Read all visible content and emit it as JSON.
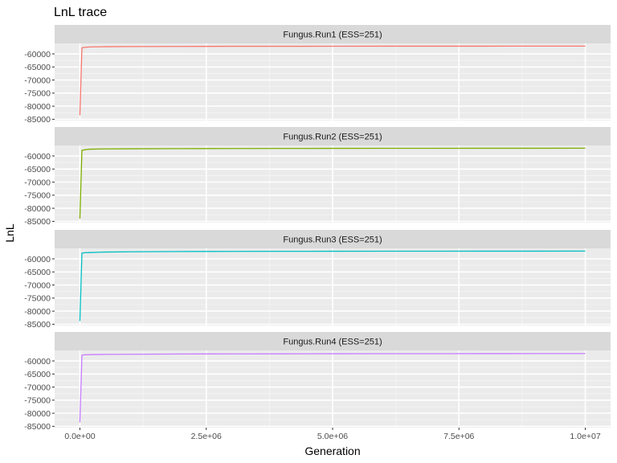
{
  "chart_data": {
    "type": "line",
    "title": "LnL trace",
    "xlabel": "Generation",
    "ylabel": "LnL",
    "xlim": [
      -500000,
      10500000
    ],
    "ylim": [
      -85500,
      -56000
    ],
    "grid": true,
    "x_ticks": [
      0,
      2500000,
      5000000,
      7500000,
      10000000
    ],
    "x_tick_labels": [
      "0.0e+00",
      "2.5e+06",
      "5.0e+06",
      "7.5e+06",
      "1.0e+07"
    ],
    "y_ticks": [
      -60000,
      -65000,
      -70000,
      -75000,
      -80000,
      -85000
    ],
    "y_tick_labels": [
      "-60000",
      "-65000",
      "-70000",
      "-75000",
      "-80000",
      "-85000"
    ],
    "facets": [
      {
        "strip": "Fungus.Run1 (ESS=251)",
        "color": "#F8766D",
        "series": {
          "x": [
            0,
            40000,
            100000,
            200000,
            500000,
            1000000,
            2000000,
            3000000,
            4000000,
            5000000,
            6000000,
            7000000,
            8000000,
            9000000,
            10000000
          ],
          "y": [
            -83500,
            -57700,
            -57500,
            -57350,
            -57250,
            -57200,
            -57150,
            -57100,
            -57100,
            -57080,
            -57060,
            -57050,
            -57050,
            -57040,
            -57030
          ]
        }
      },
      {
        "strip": "Fungus.Run2 (ESS=251)",
        "color": "#7CAE00",
        "series": {
          "x": [
            0,
            40000,
            100000,
            200000,
            500000,
            1000000,
            2000000,
            3000000,
            4000000,
            5000000,
            6000000,
            7000000,
            8000000,
            9000000,
            10000000
          ],
          "y": [
            -84000,
            -57900,
            -57600,
            -57400,
            -57300,
            -57250,
            -57200,
            -57150,
            -57120,
            -57100,
            -57080,
            -57070,
            -57060,
            -57050,
            -57040
          ]
        }
      },
      {
        "strip": "Fungus.Run3 (ESS=251)",
        "color": "#00BFC4",
        "series": {
          "x": [
            0,
            40000,
            100000,
            200000,
            500000,
            1000000,
            2000000,
            3000000,
            4000000,
            5000000,
            6000000,
            7000000,
            8000000,
            9000000,
            10000000
          ],
          "y": [
            -83800,
            -57800,
            -57650,
            -57600,
            -57400,
            -57300,
            -57200,
            -57150,
            -57120,
            -57100,
            -57080,
            -57070,
            -57060,
            -57050,
            -57040
          ]
        }
      },
      {
        "strip": "Fungus.Run4 (ESS=251)",
        "color": "#C77CFF",
        "series": {
          "x": [
            0,
            40000,
            100000,
            200000,
            500000,
            1000000,
            2000000,
            3000000,
            4000000,
            5000000,
            6000000,
            7000000,
            8000000,
            9000000,
            10000000
          ],
          "y": [
            -83500,
            -57800,
            -57650,
            -57600,
            -57500,
            -57450,
            -57350,
            -57300,
            -57280,
            -57250,
            -57230,
            -57220,
            -57210,
            -57200,
            -57190
          ]
        }
      }
    ]
  }
}
